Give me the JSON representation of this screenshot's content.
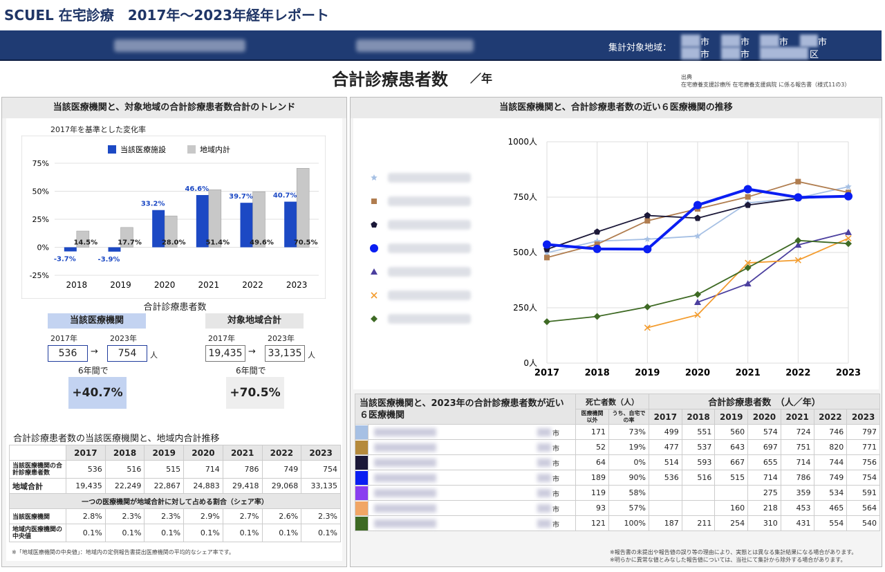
{
  "header": {
    "title": "SCUEL 在宅診療　2017年〜2023年経年レポート",
    "region_label": "集計対象地域：",
    "region_cells": [
      "市",
      "市",
      "市",
      "市",
      "市",
      "市",
      "区"
    ]
  },
  "main": {
    "title": "合計診療患者数",
    "unit": "／年",
    "source_title": "出典",
    "source_text": "在宅療養支援診療所 在宅療養支援病院 に係る報告書（様式11の3）"
  },
  "left": {
    "heading": "当該医療機関と、対象地域の合計診療患者数合計のトレンド",
    "subheading": "2017年を基準とした変化率",
    "kpi_caption": "合計診療患者数",
    "facility_label": "当該医療機関",
    "region_label": "対象地域合計",
    "y2017": "2017年",
    "y2023": "2023年",
    "facility_from": "536",
    "facility_to": "754",
    "region_from": "19,435",
    "region_to": "33,135",
    "unit": "人",
    "arrow": "→",
    "span_label": "6年間で",
    "facility_pct": "+40.7%",
    "region_pct": "+70.5%",
    "table_title": "合計診療患者数の当該医療機関と、地域内合計推移",
    "table_years": [
      "2017",
      "2018",
      "2019",
      "2020",
      "2021",
      "2022",
      "2023"
    ],
    "row_facility_label": "当該医療機関の合計診療患者数",
    "row_facility": [
      "536",
      "516",
      "515",
      "714",
      "786",
      "749",
      "754"
    ],
    "row_region_label": "地域合計",
    "row_region": [
      "19,435",
      "22,249",
      "22,867",
      "24,883",
      "29,418",
      "29,068",
      "33,135"
    ],
    "share_heading": "一つの医療機関が地域合計に対して占める割合（シェア率）",
    "row_share_label": "当該医療機関",
    "row_share": [
      "2.8%",
      "2.3%",
      "2.3%",
      "2.9%",
      "2.7%",
      "2.6%",
      "2.3%"
    ],
    "row_median_label": "地域内医療機関の中央値",
    "row_median": [
      "0.1%",
      "0.1%",
      "0.1%",
      "0.1%",
      "0.1%",
      "0.1%",
      "0.1%"
    ],
    "footnote": "※「地域医療機関の中央値」：地域内の定例報告書提出医療機関の平均的なシェア率です。"
  },
  "right": {
    "heading": "当該医療機関と、合計診療患者数の近い６医療機関の推移",
    "table_head_left": "当該医療機関と、2023年の合計診療患者数が近い６医療機関",
    "deaths_head": "死亡者数（人）",
    "deaths_sub1": "医療機関以外",
    "deaths_sub2": "うち、自宅での率",
    "patients_head": "合計診療患者数　（人／年）",
    "years": [
      "2017",
      "2018",
      "2019",
      "2020",
      "2021",
      "2022",
      "2023"
    ],
    "city_suffix": "市",
    "rows": [
      {
        "color": "#a6c0e4",
        "deaths": "171",
        "rate": "73%",
        "vals": [
          "499",
          "551",
          "560",
          "574",
          "724",
          "746",
          "797"
        ]
      },
      {
        "color": "#b58a3c",
        "deaths": "52",
        "rate": "19%",
        "vals": [
          "477",
          "537",
          "643",
          "697",
          "751",
          "820",
          "771"
        ]
      },
      {
        "color": "#1b1838",
        "deaths": "64",
        "rate": "0%",
        "vals": [
          "514",
          "593",
          "667",
          "655",
          "714",
          "744",
          "756"
        ]
      },
      {
        "color": "#0a1ef2",
        "deaths": "189",
        "rate": "90%",
        "vals": [
          "536",
          "516",
          "515",
          "714",
          "786",
          "749",
          "754"
        ]
      },
      {
        "color": "#8a3ef0",
        "deaths": "119",
        "rate": "58%",
        "vals": [
          "",
          "",
          "",
          "275",
          "359",
          "534",
          "591"
        ]
      },
      {
        "color": "#f1a665",
        "deaths": "93",
        "rate": "57%",
        "vals": [
          "",
          "",
          "160",
          "218",
          "453",
          "465",
          "564"
        ]
      },
      {
        "color": "#3e6a24",
        "deaths": "121",
        "rate": "100%",
        "vals": [
          "187",
          "211",
          "254",
          "310",
          "431",
          "554",
          "540"
        ]
      }
    ],
    "note1": "※報告書の未提出や報告値の誤り等の理由により、実態とは異なる集計結果になる場合があります。",
    "note2": "※明らかに異常な値とみなした報告値については、当社にて集計から除外する場合があります。"
  },
  "chart_data": [
    {
      "type": "bar",
      "title": "2017年を基準とした変化率",
      "categories": [
        "2018",
        "2019",
        "2020",
        "2021",
        "2022",
        "2023"
      ],
      "ylim": [
        -25,
        75
      ],
      "yticks": [
        "75%",
        "50%",
        "25%",
        "0%",
        "-25%"
      ],
      "legend_position": "top",
      "series": [
        {
          "name": "当該医療施設",
          "color": "#1c49c4",
          "values": [
            -3.7,
            -3.9,
            33.2,
            46.6,
            39.7,
            40.7
          ],
          "labels": [
            "-3.7%",
            "-3.9%",
            "33.2%",
            "46.6%",
            "39.7%",
            "40.7%"
          ]
        },
        {
          "name": "地域内計",
          "color": "#c8c8c8",
          "values": [
            14.5,
            17.7,
            28.0,
            51.4,
            49.6,
            70.5
          ],
          "labels": [
            "14.5%",
            "17.7%",
            "28.0%",
            "51.4%",
            "49.6%",
            "70.5%"
          ]
        }
      ]
    },
    {
      "type": "line",
      "x": [
        "2017",
        "2018",
        "2019",
        "2020",
        "2021",
        "2022",
        "2023"
      ],
      "ylim": [
        0,
        1000
      ],
      "yticks": [
        "1000人",
        "750人",
        "500人",
        "250人",
        "0人"
      ],
      "series": [
        {
          "color": "#a6c0e4",
          "marker": "star",
          "values": [
            499,
            551,
            560,
            574,
            724,
            746,
            797
          ]
        },
        {
          "color": "#b07d4f",
          "marker": "square",
          "values": [
            477,
            537,
            643,
            697,
            751,
            820,
            771
          ]
        },
        {
          "color": "#1b1838",
          "marker": "pentagon",
          "values": [
            514,
            593,
            667,
            655,
            714,
            744,
            756
          ]
        },
        {
          "color": "#0a1ef2",
          "marker": "circle",
          "bold": true,
          "values": [
            536,
            516,
            515,
            714,
            786,
            749,
            754
          ]
        },
        {
          "color": "#4b3f9e",
          "marker": "triangle",
          "values": [
            null,
            null,
            null,
            275,
            359,
            534,
            591
          ]
        },
        {
          "color": "#f39c2e",
          "marker": "x",
          "values": [
            null,
            null,
            160,
            218,
            453,
            465,
            564
          ]
        },
        {
          "color": "#3e6a24",
          "marker": "diamond",
          "values": [
            187,
            211,
            254,
            310,
            431,
            554,
            540
          ]
        }
      ]
    }
  ]
}
